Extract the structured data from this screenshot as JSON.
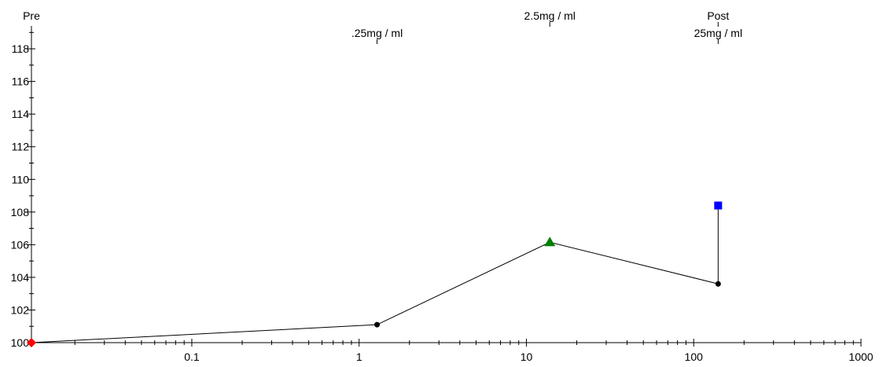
{
  "chart_data": {
    "type": "line",
    "x_log": true,
    "xlim": [
      0.011,
      1000
    ],
    "ylim": [
      100,
      119.4
    ],
    "xticks": [
      0.1,
      1,
      10,
      100,
      1000
    ],
    "xminorticks": [
      0.02,
      0.03,
      0.04,
      0.05,
      0.06,
      0.07,
      0.08,
      0.09,
      0.2,
      0.3,
      0.4,
      0.5,
      0.6,
      0.7,
      0.8,
      0.9,
      2,
      3,
      4,
      5,
      6,
      7,
      8,
      9,
      20,
      30,
      40,
      50,
      60,
      70,
      80,
      90,
      200,
      300,
      400,
      500,
      600,
      700,
      800,
      900
    ],
    "yticks": [
      100,
      102,
      104,
      106,
      108,
      110,
      112,
      114,
      116,
      118
    ],
    "yminorticks": [
      101,
      103,
      105,
      107,
      109,
      111,
      113,
      115,
      117,
      119
    ],
    "series": [
      {
        "color": "#000000",
        "x": [
          0.011,
          1.28,
          13.8,
          140,
          140
        ],
        "values": [
          100,
          101.1,
          106.15,
          103.6,
          108.4
        ],
        "marker_shapes": [
          "diamond",
          "circle",
          "triangle",
          "circle",
          "square"
        ],
        "marker_colors": [
          "#ff0000",
          "#000000",
          "#008000",
          "#000000",
          "#0000ff"
        ]
      }
    ],
    "annotations": [
      {
        "text": "Pre",
        "x": 0.011
      },
      {
        "text": ".25mg / ml",
        "x": 1.28
      },
      {
        "text": "2.5mg / ml",
        "x": 13.8
      },
      {
        "text": "25mg / ml",
        "x": 140
      },
      {
        "text": "Post",
        "x": 140
      }
    ]
  }
}
